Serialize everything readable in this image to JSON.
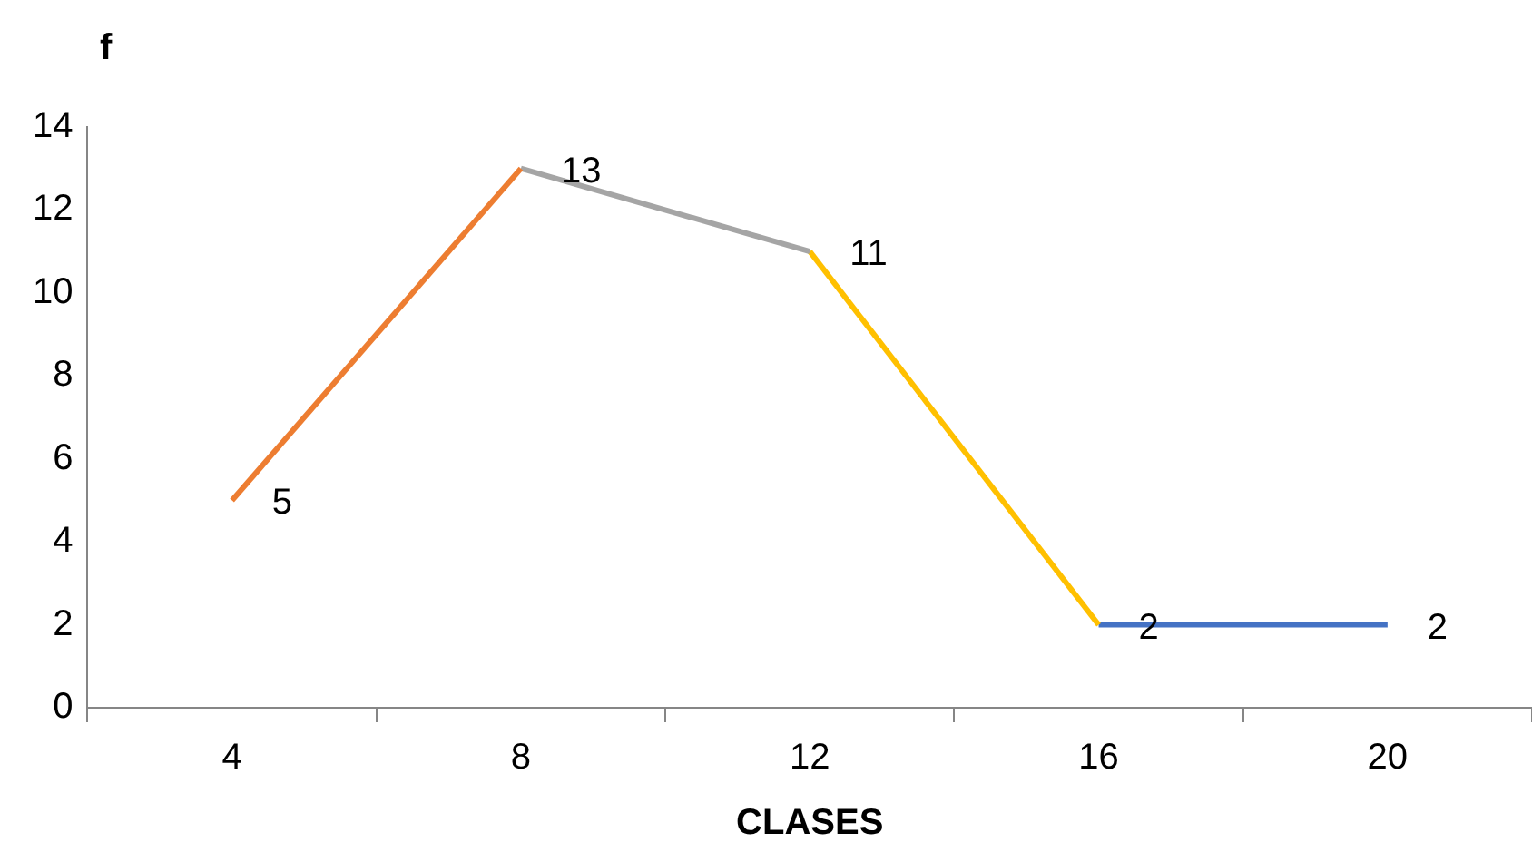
{
  "chart_data": {
    "type": "line",
    "ylabel": "f",
    "xlabel": "CLASES",
    "categories": [
      "4",
      "8",
      "12",
      "16",
      "20"
    ],
    "ylim": [
      0,
      14
    ],
    "yticks": [
      0,
      2,
      4,
      6,
      8,
      10,
      12,
      14
    ],
    "grid": false,
    "legend": false,
    "marker": "none",
    "line_style": "solid",
    "series": [
      {
        "color": "#ed7d31",
        "values": [
          5,
          13,
          null,
          null,
          null
        ],
        "value_labels": [
          "5",
          null,
          null,
          null,
          null
        ]
      },
      {
        "color": "#a5a5a5",
        "values": [
          null,
          13,
          11,
          null,
          null
        ],
        "value_labels": [
          null,
          "13",
          null,
          null,
          null
        ]
      },
      {
        "color": "#ffc000",
        "values": [
          null,
          null,
          11,
          2,
          null
        ],
        "value_labels": [
          null,
          null,
          "11",
          "2",
          null
        ]
      },
      {
        "color": "#4472c4",
        "values": [
          null,
          null,
          null,
          2,
          2
        ],
        "value_labels": [
          null,
          null,
          null,
          null,
          "2"
        ]
      }
    ]
  }
}
